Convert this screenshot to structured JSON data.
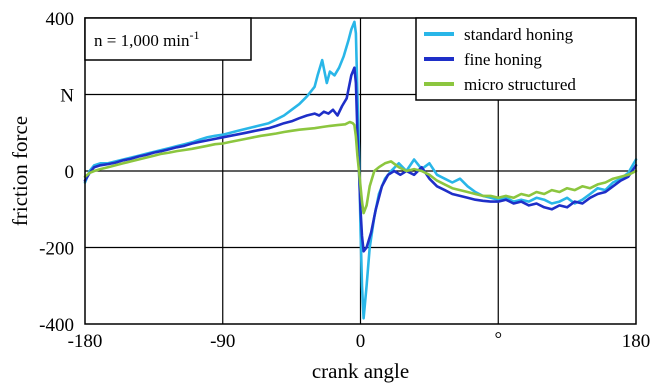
{
  "chart_data": {
    "type": "line",
    "title": "",
    "xlabel": "crank angle",
    "ylabel": "friction force",
    "x_unit": "°",
    "y_unit": "N",
    "xlim": [
      -180,
      180
    ],
    "ylim": [
      -400,
      400
    ],
    "x_ticks": [
      -180,
      -90,
      0,
      90,
      180
    ],
    "y_ticks": [
      -400,
      -200,
      0,
      200,
      400
    ],
    "x_tick_labels": [
      "-180",
      "-90",
      "0",
      "",
      "180"
    ],
    "y_tick_labels": [
      "-400",
      "-200",
      "0",
      "",
      "400"
    ],
    "grid": true,
    "legend_position": "top-right",
    "annotation": {
      "text": "n = 1,000 min",
      "superscript": "-1"
    },
    "series": [
      {
        "name": "standard honing",
        "color": "#29b6e8",
        "points": [
          [
            -180,
            -30
          ],
          [
            -177,
            0
          ],
          [
            -174,
            15
          ],
          [
            -170,
            20
          ],
          [
            -165,
            20
          ],
          [
            -160,
            25
          ],
          [
            -155,
            30
          ],
          [
            -150,
            35
          ],
          [
            -145,
            40
          ],
          [
            -140,
            45
          ],
          [
            -135,
            50
          ],
          [
            -130,
            55
          ],
          [
            -125,
            60
          ],
          [
            -120,
            65
          ],
          [
            -115,
            70
          ],
          [
            -110,
            75
          ],
          [
            -105,
            82
          ],
          [
            -100,
            88
          ],
          [
            -95,
            92
          ],
          [
            -90,
            95
          ],
          [
            -85,
            100
          ],
          [
            -80,
            105
          ],
          [
            -75,
            110
          ],
          [
            -70,
            115
          ],
          [
            -65,
            120
          ],
          [
            -60,
            125
          ],
          [
            -55,
            135
          ],
          [
            -50,
            145
          ],
          [
            -45,
            160
          ],
          [
            -40,
            175
          ],
          [
            -35,
            195
          ],
          [
            -30,
            220
          ],
          [
            -28,
            250
          ],
          [
            -25,
            290
          ],
          [
            -22,
            230
          ],
          [
            -20,
            260
          ],
          [
            -17,
            250
          ],
          [
            -14,
            270
          ],
          [
            -11,
            300
          ],
          [
            -8,
            340
          ],
          [
            -6,
            370
          ],
          [
            -4,
            390
          ],
          [
            -3,
            360
          ],
          [
            -2,
            200
          ],
          [
            -1,
            50
          ],
          [
            0,
            -150
          ],
          [
            1,
            -300
          ],
          [
            2,
            -385
          ],
          [
            4,
            -300
          ],
          [
            6,
            -200
          ],
          [
            9,
            -120
          ],
          [
            12,
            -60
          ],
          [
            16,
            -20
          ],
          [
            20,
            0
          ],
          [
            25,
            20
          ],
          [
            30,
            0
          ],
          [
            35,
            30
          ],
          [
            40,
            5
          ],
          [
            45,
            20
          ],
          [
            50,
            -10
          ],
          [
            55,
            -20
          ],
          [
            60,
            -30
          ],
          [
            65,
            -20
          ],
          [
            70,
            -40
          ],
          [
            75,
            -55
          ],
          [
            80,
            -65
          ],
          [
            85,
            -70
          ],
          [
            90,
            -75
          ],
          [
            95,
            -70
          ],
          [
            100,
            -80
          ],
          [
            105,
            -75
          ],
          [
            110,
            -80
          ],
          [
            115,
            -70
          ],
          [
            120,
            -75
          ],
          [
            125,
            -85
          ],
          [
            130,
            -80
          ],
          [
            135,
            -70
          ],
          [
            140,
            -85
          ],
          [
            145,
            -75
          ],
          [
            150,
            -60
          ],
          [
            155,
            -45
          ],
          [
            160,
            -50
          ],
          [
            165,
            -30
          ],
          [
            170,
            -20
          ],
          [
            175,
            -5
          ],
          [
            180,
            30
          ]
        ]
      },
      {
        "name": "fine honing",
        "color": "#1e2fc8",
        "points": [
          [
            -180,
            -25
          ],
          [
            -177,
            -5
          ],
          [
            -174,
            10
          ],
          [
            -170,
            15
          ],
          [
            -165,
            18
          ],
          [
            -160,
            22
          ],
          [
            -155,
            28
          ],
          [
            -150,
            32
          ],
          [
            -145,
            38
          ],
          [
            -140,
            42
          ],
          [
            -135,
            48
          ],
          [
            -130,
            52
          ],
          [
            -125,
            57
          ],
          [
            -120,
            62
          ],
          [
            -115,
            66
          ],
          [
            -110,
            72
          ],
          [
            -105,
            76
          ],
          [
            -100,
            80
          ],
          [
            -95,
            84
          ],
          [
            -90,
            88
          ],
          [
            -85,
            92
          ],
          [
            -80,
            96
          ],
          [
            -75,
            100
          ],
          [
            -70,
            104
          ],
          [
            -65,
            108
          ],
          [
            -60,
            112
          ],
          [
            -55,
            118
          ],
          [
            -50,
            125
          ],
          [
            -45,
            130
          ],
          [
            -40,
            138
          ],
          [
            -35,
            145
          ],
          [
            -30,
            150
          ],
          [
            -27,
            145
          ],
          [
            -24,
            155
          ],
          [
            -21,
            150
          ],
          [
            -18,
            160
          ],
          [
            -15,
            145
          ],
          [
            -12,
            170
          ],
          [
            -9,
            190
          ],
          [
            -6,
            250
          ],
          [
            -4,
            270
          ],
          [
            -3,
            230
          ],
          [
            -2,
            100
          ],
          [
            -1,
            0
          ],
          [
            0,
            -100
          ],
          [
            1,
            -170
          ],
          [
            2,
            -210
          ],
          [
            4,
            -200
          ],
          [
            7,
            -160
          ],
          [
            10,
            -100
          ],
          [
            14,
            -40
          ],
          [
            18,
            -10
          ],
          [
            22,
            0
          ],
          [
            26,
            -10
          ],
          [
            30,
            0
          ],
          [
            35,
            -10
          ],
          [
            40,
            10
          ],
          [
            45,
            -20
          ],
          [
            50,
            -40
          ],
          [
            55,
            -50
          ],
          [
            60,
            -60
          ],
          [
            65,
            -65
          ],
          [
            70,
            -70
          ],
          [
            75,
            -75
          ],
          [
            80,
            -78
          ],
          [
            85,
            -80
          ],
          [
            90,
            -80
          ],
          [
            95,
            -75
          ],
          [
            100,
            -85
          ],
          [
            105,
            -80
          ],
          [
            110,
            -90
          ],
          [
            115,
            -85
          ],
          [
            120,
            -95
          ],
          [
            125,
            -100
          ],
          [
            130,
            -90
          ],
          [
            135,
            -95
          ],
          [
            140,
            -80
          ],
          [
            145,
            -85
          ],
          [
            150,
            -70
          ],
          [
            155,
            -60
          ],
          [
            160,
            -55
          ],
          [
            165,
            -40
          ],
          [
            170,
            -25
          ],
          [
            175,
            -15
          ],
          [
            180,
            15
          ]
        ]
      },
      {
        "name": "micro structured",
        "color": "#8cc63f",
        "points": [
          [
            -180,
            -15
          ],
          [
            -177,
            -5
          ],
          [
            -174,
            0
          ],
          [
            -170,
            5
          ],
          [
            -165,
            10
          ],
          [
            -160,
            15
          ],
          [
            -155,
            20
          ],
          [
            -150,
            25
          ],
          [
            -145,
            30
          ],
          [
            -140,
            35
          ],
          [
            -135,
            40
          ],
          [
            -130,
            45
          ],
          [
            -125,
            48
          ],
          [
            -120,
            52
          ],
          [
            -115,
            55
          ],
          [
            -110,
            58
          ],
          [
            -105,
            62
          ],
          [
            -100,
            66
          ],
          [
            -95,
            70
          ],
          [
            -90,
            72
          ],
          [
            -85,
            76
          ],
          [
            -80,
            80
          ],
          [
            -75,
            84
          ],
          [
            -70,
            88
          ],
          [
            -65,
            92
          ],
          [
            -60,
            95
          ],
          [
            -55,
            98
          ],
          [
            -50,
            102
          ],
          [
            -45,
            105
          ],
          [
            -40,
            108
          ],
          [
            -35,
            110
          ],
          [
            -30,
            112
          ],
          [
            -25,
            115
          ],
          [
            -20,
            118
          ],
          [
            -15,
            120
          ],
          [
            -10,
            122
          ],
          [
            -7,
            128
          ],
          [
            -5,
            125
          ],
          [
            -4,
            120
          ],
          [
            -3,
            90
          ],
          [
            -2,
            40
          ],
          [
            -1,
            0
          ],
          [
            0,
            -40
          ],
          [
            1,
            -80
          ],
          [
            2,
            -110
          ],
          [
            4,
            -90
          ],
          [
            6,
            -40
          ],
          [
            9,
            0
          ],
          [
            12,
            10
          ],
          [
            16,
            20
          ],
          [
            20,
            25
          ],
          [
            25,
            10
          ],
          [
            30,
            0
          ],
          [
            35,
            5
          ],
          [
            40,
            0
          ],
          [
            45,
            -10
          ],
          [
            50,
            -25
          ],
          [
            55,
            -35
          ],
          [
            60,
            -45
          ],
          [
            65,
            -50
          ],
          [
            70,
            -55
          ],
          [
            75,
            -60
          ],
          [
            80,
            -65
          ],
          [
            85,
            -65
          ],
          [
            90,
            -70
          ],
          [
            95,
            -65
          ],
          [
            100,
            -70
          ],
          [
            105,
            -60
          ],
          [
            110,
            -65
          ],
          [
            115,
            -55
          ],
          [
            120,
            -60
          ],
          [
            125,
            -50
          ],
          [
            130,
            -55
          ],
          [
            135,
            -45
          ],
          [
            140,
            -50
          ],
          [
            145,
            -40
          ],
          [
            150,
            -45
          ],
          [
            155,
            -35
          ],
          [
            160,
            -30
          ],
          [
            165,
            -20
          ],
          [
            170,
            -15
          ],
          [
            175,
            -10
          ],
          [
            180,
            0
          ]
        ]
      }
    ]
  }
}
